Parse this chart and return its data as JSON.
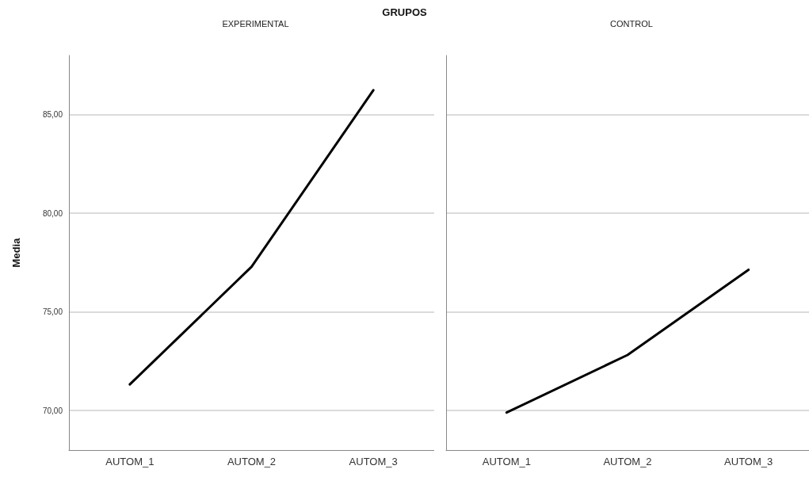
{
  "chart_data": [
    {
      "type": "line",
      "title": "EXPERIMENTAL",
      "annotations": [
        "GRUPOS"
      ],
      "ylabel": "Media",
      "categories": [
        "AUTOM_1",
        "AUTOM_2",
        "AUTOM_3"
      ],
      "series": [
        {
          "color": "#000000",
          "values": [
            71.33,
            77.29,
            86.24
          ]
        }
      ],
      "ylim": [
        68,
        88
      ],
      "yticks": [
        {
          "value": 70,
          "label": "70,00"
        },
        {
          "value": 75,
          "label": "75,00"
        },
        {
          "value": 80,
          "label": "80,00"
        },
        {
          "value": 85,
          "label": "85,00"
        }
      ],
      "grid": "y",
      "marker": "none",
      "line_style": "solid"
    },
    {
      "type": "line",
      "title": "CONTROL",
      "categories": [
        "AUTOM_1",
        "AUTOM_2",
        "AUTOM_3"
      ],
      "series": [
        {
          "color": "#000000",
          "values": [
            69.9,
            72.82,
            77.14
          ]
        }
      ],
      "ylim": [
        68,
        88
      ],
      "yticks": [
        70,
        75,
        80,
        85
      ],
      "grid": "y",
      "marker": "none",
      "line_style": "solid",
      "tick_labels": "x"
    }
  ]
}
